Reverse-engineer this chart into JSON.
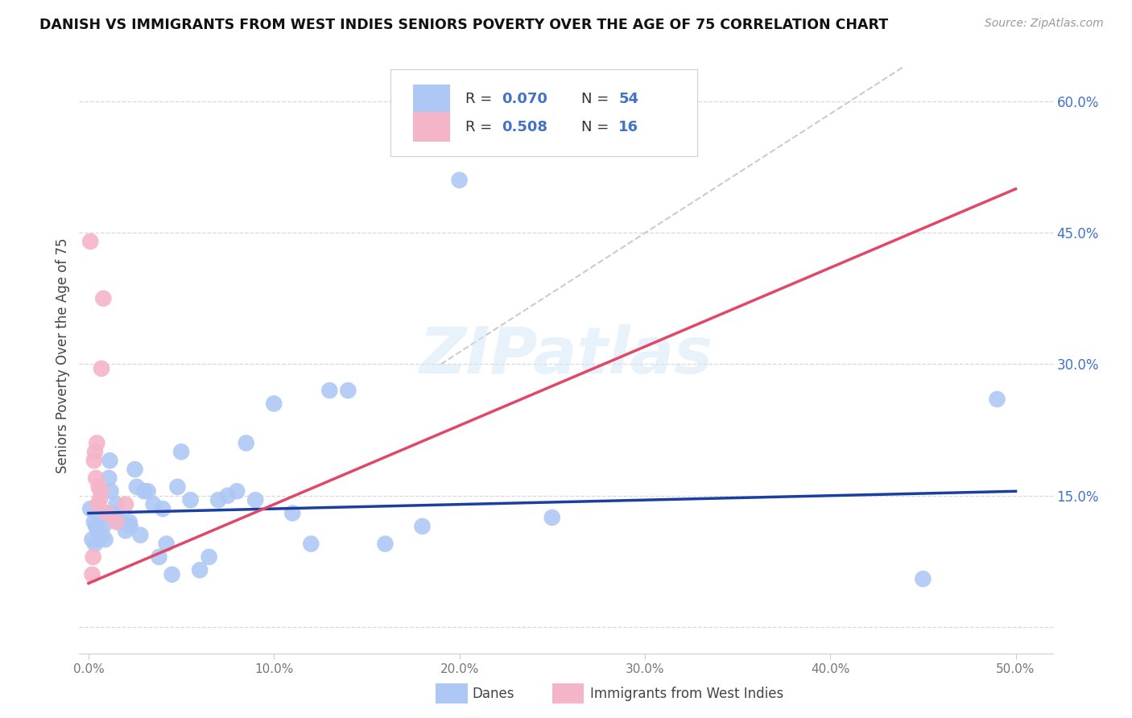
{
  "title": "DANISH VS IMMIGRANTS FROM WEST INDIES SENIORS POVERTY OVER THE AGE OF 75 CORRELATION CHART",
  "source": "Source: ZipAtlas.com",
  "ylabel": "Seniors Poverty Over the Age of 75",
  "blue_R": "0.070",
  "blue_N": "54",
  "pink_R": "0.508",
  "pink_N": "16",
  "blue_color": "#aec8f5",
  "pink_color": "#f5b5c8",
  "blue_line_color": "#1a3fa0",
  "pink_line_color": "#e04868",
  "dashed_color": "#cccccc",
  "watermark_color": "#d5e8f8",
  "accent_color": "#4472c4",
  "watermark": "ZIPatlas",
  "blue_scatter_x": [
    0.1,
    0.2,
    0.3,
    0.35,
    0.4,
    0.5,
    0.55,
    0.6,
    0.7,
    0.8,
    0.85,
    0.9,
    1.0,
    1.1,
    1.15,
    1.2,
    1.3,
    1.5,
    1.6,
    1.8,
    2.0,
    2.2,
    2.25,
    2.5,
    2.6,
    2.8,
    3.0,
    3.2,
    3.5,
    3.8,
    4.0,
    4.2,
    4.5,
    4.8,
    5.0,
    5.5,
    6.0,
    6.5,
    7.0,
    7.5,
    8.0,
    8.5,
    9.0,
    10.0,
    11.0,
    12.0,
    13.0,
    14.0,
    16.0,
    18.0,
    20.0,
    25.0,
    45.0,
    49.0
  ],
  "blue_scatter_y": [
    13.5,
    10.0,
    12.0,
    9.5,
    11.5,
    11.0,
    10.0,
    12.5,
    10.5,
    11.5,
    13.0,
    10.0,
    13.0,
    17.0,
    19.0,
    15.5,
    13.0,
    14.0,
    12.0,
    12.0,
    11.0,
    12.0,
    11.5,
    18.0,
    16.0,
    10.5,
    15.5,
    15.5,
    14.0,
    8.0,
    13.5,
    9.5,
    6.0,
    16.0,
    20.0,
    14.5,
    6.5,
    8.0,
    14.5,
    15.0,
    15.5,
    21.0,
    14.5,
    25.5,
    13.0,
    9.5,
    27.0,
    27.0,
    9.5,
    11.5,
    51.0,
    12.5,
    5.5,
    26.0
  ],
  "pink_scatter_x": [
    0.1,
    0.2,
    0.25,
    0.3,
    0.35,
    0.4,
    0.45,
    0.5,
    0.55,
    0.6,
    0.65,
    0.7,
    0.8,
    1.0,
    1.5,
    2.0
  ],
  "pink_scatter_y": [
    44.0,
    6.0,
    8.0,
    19.0,
    20.0,
    17.0,
    21.0,
    14.0,
    16.0,
    14.5,
    15.5,
    29.5,
    37.5,
    13.0,
    12.0,
    14.0
  ],
  "blue_line_x": [
    0.0,
    50.0
  ],
  "blue_line_y": [
    13.0,
    15.5
  ],
  "pink_line_x": [
    0.0,
    50.0
  ],
  "pink_line_y": [
    5.0,
    50.0
  ],
  "dashed_line_x": [
    19.0,
    44.0
  ],
  "dashed_line_y": [
    30.0,
    64.0
  ],
  "xlim": [
    -0.5,
    52.0
  ],
  "ylim": [
    -3.0,
    65.0
  ],
  "ytick_positions": [
    0.0,
    15.0,
    30.0,
    45.0,
    60.0
  ],
  "ytick_labels": [
    "",
    "15.0%",
    "30.0%",
    "45.0%",
    "60.0%"
  ],
  "xtick_positions": [
    0.0,
    10.0,
    20.0,
    30.0,
    40.0,
    50.0
  ],
  "xtick_labels": [
    "0.0%",
    "10.0%",
    "20.0%",
    "30.0%",
    "40.0%",
    "50.0%"
  ],
  "grid_color": "#d8d8d8",
  "spine_color": "#cccccc",
  "tick_label_color": "#777777"
}
